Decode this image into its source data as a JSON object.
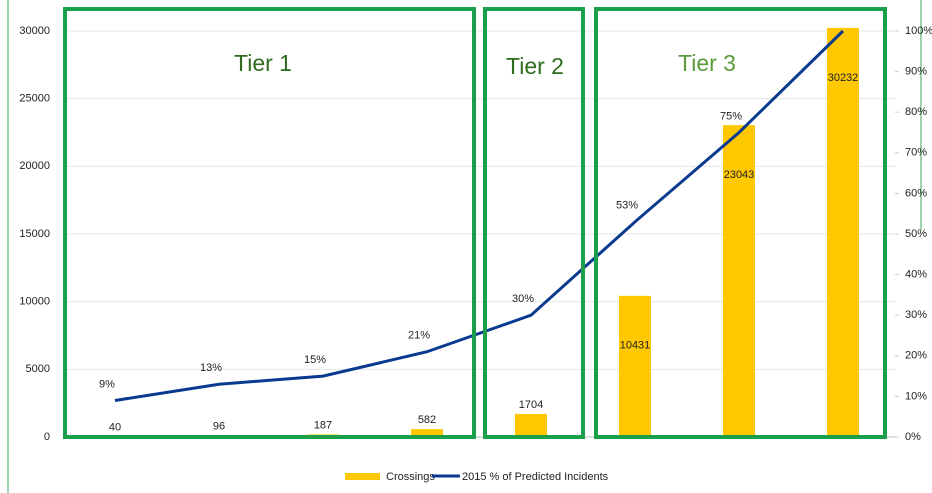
{
  "chart_data": {
    "type": "bar_line",
    "categories": [
      null,
      null,
      null,
      null,
      null,
      null,
      null,
      null
    ],
    "series": [
      {
        "name": "Crossings",
        "type": "bar",
        "color": "#ffc800",
        "values": [
          40,
          96,
          187,
          582,
          1704,
          10431,
          23043,
          30232
        ]
      },
      {
        "name": "2015 % of Predicted Incidents",
        "type": "line",
        "axis": "y2",
        "color": "#0a3a8f",
        "values": [
          9,
          13,
          15,
          21,
          30,
          53,
          75,
          100
        ],
        "value_labels": [
          "9%",
          "13%",
          "15%",
          "21%",
          "30%",
          "53%",
          "75%",
          null
        ]
      }
    ],
    "ylim": [
      0,
      30000
    ],
    "yticks": [
      0,
      5000,
      10000,
      15000,
      20000,
      25000,
      30000
    ],
    "y2lim": [
      0,
      100
    ],
    "y2ticks": [
      {
        "value": 0,
        "label": "0%"
      },
      {
        "value": 10,
        "label": "10%"
      },
      {
        "value": 20,
        "label": "20%"
      },
      {
        "value": 30,
        "label": "30%"
      },
      {
        "value": 40,
        "label": "40%"
      },
      {
        "value": 50,
        "label": "50%"
      },
      {
        "value": 60,
        "label": "60%"
      },
      {
        "value": 70,
        "label": "70%"
      },
      {
        "value": 80,
        "label": "80%"
      },
      {
        "value": 90,
        "label": "90%"
      },
      {
        "value": 100,
        "label": "100%"
      }
    ],
    "grid": true,
    "legend": "bottom",
    "annotations": [
      {
        "text": "Tier 1",
        "color": "#2e6b1f"
      },
      {
        "text": "Tier 2",
        "color": "#2e6b1f"
      },
      {
        "text": "Tier 3",
        "color": "#5a9a3a"
      }
    ]
  }
}
